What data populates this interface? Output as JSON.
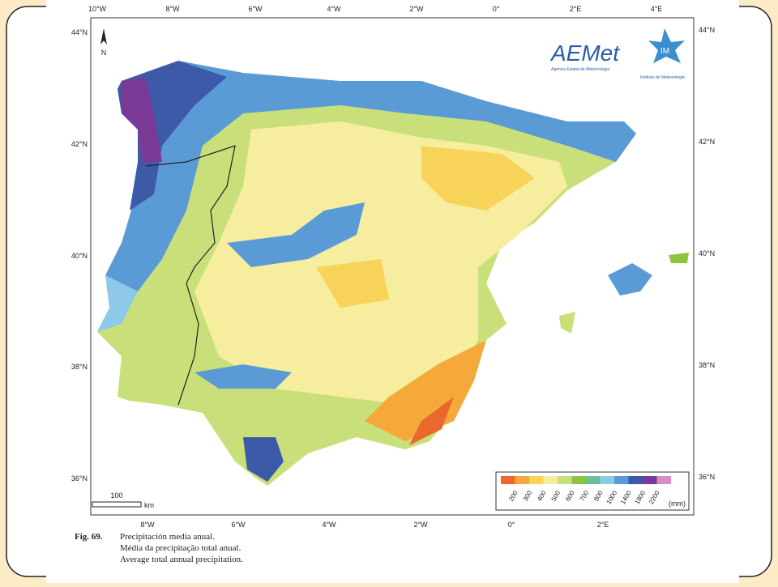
{
  "map": {
    "top_ticks": [
      "10°W",
      "8°W",
      "6°W",
      "4°W",
      "2°W",
      "0°",
      "2°E",
      "4°E"
    ],
    "bottom_ticks": [
      "8°W",
      "6°W",
      "4°W",
      "2°W",
      "0°",
      "2°E"
    ],
    "left_ticks": [
      "44°N",
      "42°N",
      "40°N",
      "38°N",
      "36°N"
    ],
    "right_ticks": [
      "44°N",
      "42°N",
      "40°N",
      "38°N",
      "36°N"
    ],
    "north": "N",
    "scale": {
      "value": "100",
      "unit": "km"
    },
    "legend": {
      "swatches": [
        "#e8692b",
        "#f5a93a",
        "#f7d35a",
        "#f6ee9e",
        "#c9e07a",
        "#8cc63e",
        "#6bbf9a",
        "#8ec9e8",
        "#5b9bd5",
        "#3c5aa8",
        "#7a3b96",
        "#d98ac9"
      ],
      "labels": [
        "200",
        "300",
        "400",
        "500",
        "600",
        "700",
        "800",
        "1000",
        "1400",
        "1800",
        "2200"
      ],
      "unit": "(mm)"
    }
  },
  "logos": {
    "aemet": "AEMet",
    "aemet_subtitle": "Agencia Estatal de Meteorologia",
    "im": "IM",
    "im_subtitle": "Instituto de Meteorologia"
  },
  "caption": {
    "figure": "Fig. 69.",
    "lines": [
      "Precipitación media anual.",
      "Média da precipitação total anual.",
      "Average total annual precipitation."
    ]
  }
}
